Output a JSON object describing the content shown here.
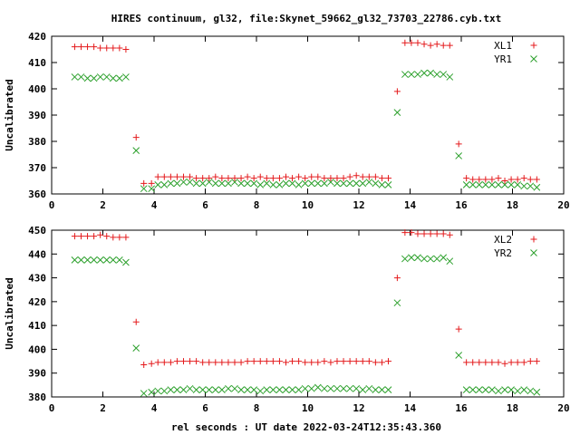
{
  "chart_data": [
    {
      "type": "scatter",
      "title": "HIRES continuum, gl32, file:Skynet_59662_gl32_73703_22786.cyb.txt",
      "xlabel": "",
      "ylabel": "Uncalibrated",
      "xlim": [
        0,
        20
      ],
      "ylim": [
        360,
        420
      ],
      "xticks": [
        0,
        2,
        4,
        6,
        8,
        10,
        12,
        14,
        16,
        18,
        20
      ],
      "yticks": [
        360,
        370,
        380,
        390,
        400,
        410,
        420
      ],
      "legend_position": "top-right",
      "grid": false,
      "series": [
        {
          "name": "XL1",
          "color": "#e41a1c",
          "marker": "plus",
          "x": [
            0.9,
            1.15,
            1.4,
            1.65,
            1.9,
            2.15,
            2.4,
            2.65,
            2.9,
            3.3,
            3.6,
            3.9,
            4.15,
            4.4,
            4.65,
            4.9,
            5.15,
            5.4,
            5.65,
            5.9,
            6.15,
            6.4,
            6.65,
            6.9,
            7.15,
            7.4,
            7.65,
            7.9,
            8.15,
            8.4,
            8.65,
            8.9,
            9.15,
            9.4,
            9.65,
            9.9,
            10.15,
            10.4,
            10.65,
            10.9,
            11.15,
            11.4,
            11.65,
            11.9,
            12.15,
            12.4,
            12.65,
            12.9,
            13.15,
            13.5,
            13.8,
            14.05,
            14.3,
            14.55,
            14.8,
            15.05,
            15.3,
            15.55,
            15.9,
            16.2,
            16.45,
            16.7,
            16.95,
            17.2,
            17.45,
            17.7,
            17.95,
            18.2,
            18.45,
            18.7,
            18.95
          ],
          "y": [
            416,
            416,
            416,
            416,
            415.5,
            415.5,
            415.5,
            415.5,
            415,
            381.5,
            364,
            364,
            366.5,
            366.5,
            366.5,
            366.5,
            366.5,
            366.5,
            366,
            366,
            366,
            366.5,
            366,
            366,
            366,
            366,
            366.5,
            366,
            366.5,
            366,
            366,
            366,
            366.5,
            366,
            366.5,
            366,
            366.5,
            366.5,
            366,
            366,
            366,
            366,
            366.5,
            367,
            366.5,
            366.5,
            366.5,
            366,
            366,
            399,
            417.5,
            417.5,
            417.5,
            417,
            416.5,
            417,
            416.5,
            416.5,
            379,
            366,
            365.5,
            365.5,
            365.5,
            365.5,
            366,
            365,
            365.5,
            365.5,
            366,
            365.5,
            365.5
          ]
        },
        {
          "name": "YR1",
          "color": "#2ca02c",
          "marker": "cross",
          "x": [
            0.9,
            1.15,
            1.4,
            1.65,
            1.9,
            2.15,
            2.4,
            2.65,
            2.9,
            3.3,
            3.6,
            3.9,
            4.15,
            4.4,
            4.65,
            4.9,
            5.15,
            5.4,
            5.65,
            5.9,
            6.15,
            6.4,
            6.65,
            6.9,
            7.15,
            7.4,
            7.65,
            7.9,
            8.15,
            8.4,
            8.65,
            8.9,
            9.15,
            9.4,
            9.65,
            9.9,
            10.15,
            10.4,
            10.65,
            10.9,
            11.15,
            11.4,
            11.65,
            11.9,
            12.15,
            12.4,
            12.65,
            12.9,
            13.15,
            13.5,
            13.8,
            14.05,
            14.3,
            14.55,
            14.8,
            15.05,
            15.3,
            15.55,
            15.9,
            16.2,
            16.45,
            16.7,
            16.95,
            17.2,
            17.45,
            17.7,
            17.95,
            18.2,
            18.45,
            18.7,
            18.95
          ],
          "y": [
            404.5,
            404.5,
            404,
            404,
            404.5,
            404.5,
            404,
            404,
            404.5,
            376.5,
            362,
            362,
            363.5,
            363.5,
            364,
            364,
            364.5,
            364.5,
            364,
            364,
            364.5,
            364,
            364,
            364,
            364.5,
            364,
            364,
            364,
            363.5,
            364,
            363.5,
            363.5,
            364,
            364,
            363.5,
            364,
            364,
            364,
            364,
            364.5,
            364,
            364,
            364,
            364,
            364,
            364.5,
            364,
            363.5,
            363.5,
            391,
            405.5,
            405.5,
            405.5,
            406,
            406,
            405.5,
            405.5,
            404.5,
            374.5,
            363.5,
            363.5,
            363.5,
            363.5,
            363.5,
            363.5,
            363.5,
            363.5,
            363.5,
            363,
            363,
            362.5
          ]
        }
      ]
    },
    {
      "type": "scatter",
      "title": "",
      "xlabel": "rel seconds : UT date 2022-03-24T12:35:43.360",
      "ylabel": "Uncalibrated",
      "xlim": [
        0,
        20
      ],
      "ylim": [
        380,
        450
      ],
      "xticks": [
        0,
        2,
        4,
        6,
        8,
        10,
        12,
        14,
        16,
        18,
        20
      ],
      "yticks": [
        380,
        390,
        400,
        410,
        420,
        430,
        440,
        450
      ],
      "legend_position": "top-right",
      "grid": false,
      "series": [
        {
          "name": "XL2",
          "color": "#e41a1c",
          "marker": "plus",
          "x": [
            0.9,
            1.15,
            1.4,
            1.65,
            1.9,
            2.15,
            2.4,
            2.65,
            2.9,
            3.3,
            3.6,
            3.9,
            4.15,
            4.4,
            4.65,
            4.9,
            5.15,
            5.4,
            5.65,
            5.9,
            6.15,
            6.4,
            6.65,
            6.9,
            7.15,
            7.4,
            7.65,
            7.9,
            8.15,
            8.4,
            8.65,
            8.9,
            9.15,
            9.4,
            9.65,
            9.9,
            10.15,
            10.4,
            10.65,
            10.9,
            11.15,
            11.4,
            11.65,
            11.9,
            12.15,
            12.4,
            12.65,
            12.9,
            13.15,
            13.5,
            13.8,
            14.05,
            14.3,
            14.55,
            14.8,
            15.05,
            15.3,
            15.55,
            15.9,
            16.2,
            16.45,
            16.7,
            16.95,
            17.2,
            17.45,
            17.7,
            17.95,
            18.2,
            18.45,
            18.7,
            18.95
          ],
          "y": [
            447.5,
            447.5,
            447.5,
            447.5,
            448,
            447.5,
            447,
            447,
            447,
            411.5,
            393.5,
            394,
            394.5,
            394.5,
            394.5,
            395,
            395,
            395,
            395,
            394.5,
            394.5,
            394.5,
            394.5,
            394.5,
            394.5,
            394.5,
            395,
            395,
            395,
            395,
            395,
            395,
            394.5,
            395,
            395,
            394.5,
            394.5,
            394.5,
            395,
            394.5,
            395,
            395,
            395,
            395,
            395,
            395,
            394.5,
            394.5,
            395,
            430,
            449,
            449,
            448.5,
            448.5,
            448.5,
            448.5,
            448.5,
            448,
            408.5,
            394.5,
            394.5,
            394.5,
            394.5,
            394.5,
            394.5,
            394,
            394.5,
            394.5,
            394.5,
            395,
            395
          ]
        },
        {
          "name": "YR2",
          "color": "#2ca02c",
          "marker": "cross",
          "x": [
            0.9,
            1.15,
            1.4,
            1.65,
            1.9,
            2.15,
            2.4,
            2.65,
            2.9,
            3.3,
            3.6,
            3.9,
            4.15,
            4.4,
            4.65,
            4.9,
            5.15,
            5.4,
            5.65,
            5.9,
            6.15,
            6.4,
            6.65,
            6.9,
            7.15,
            7.4,
            7.65,
            7.9,
            8.15,
            8.4,
            8.65,
            8.9,
            9.15,
            9.4,
            9.65,
            9.9,
            10.15,
            10.4,
            10.65,
            10.9,
            11.15,
            11.4,
            11.65,
            11.9,
            12.15,
            12.4,
            12.65,
            12.9,
            13.15,
            13.5,
            13.8,
            14.05,
            14.3,
            14.55,
            14.8,
            15.05,
            15.3,
            15.55,
            15.9,
            16.2,
            16.45,
            16.7,
            16.95,
            17.2,
            17.45,
            17.7,
            17.95,
            18.2,
            18.45,
            18.7,
            18.95
          ],
          "y": [
            437.5,
            437.5,
            437.5,
            437.5,
            437.5,
            437.5,
            437.5,
            437.5,
            436.5,
            400.5,
            381.5,
            382,
            382.5,
            382.5,
            383,
            383,
            383,
            383.5,
            383,
            383,
            383,
            383,
            383,
            383.5,
            383.5,
            383,
            383,
            383,
            382.5,
            383,
            383,
            383,
            383,
            383,
            383,
            383.5,
            383.5,
            384,
            383.5,
            383.5,
            383.5,
            383.5,
            383.5,
            383.5,
            383,
            383.5,
            383,
            383,
            383,
            419.5,
            438,
            438.5,
            438.5,
            438,
            438,
            438,
            438.5,
            437,
            397.5,
            383,
            383,
            383,
            383,
            383,
            382.5,
            383,
            383,
            382.5,
            383,
            382.5,
            382
          ]
        }
      ]
    }
  ]
}
